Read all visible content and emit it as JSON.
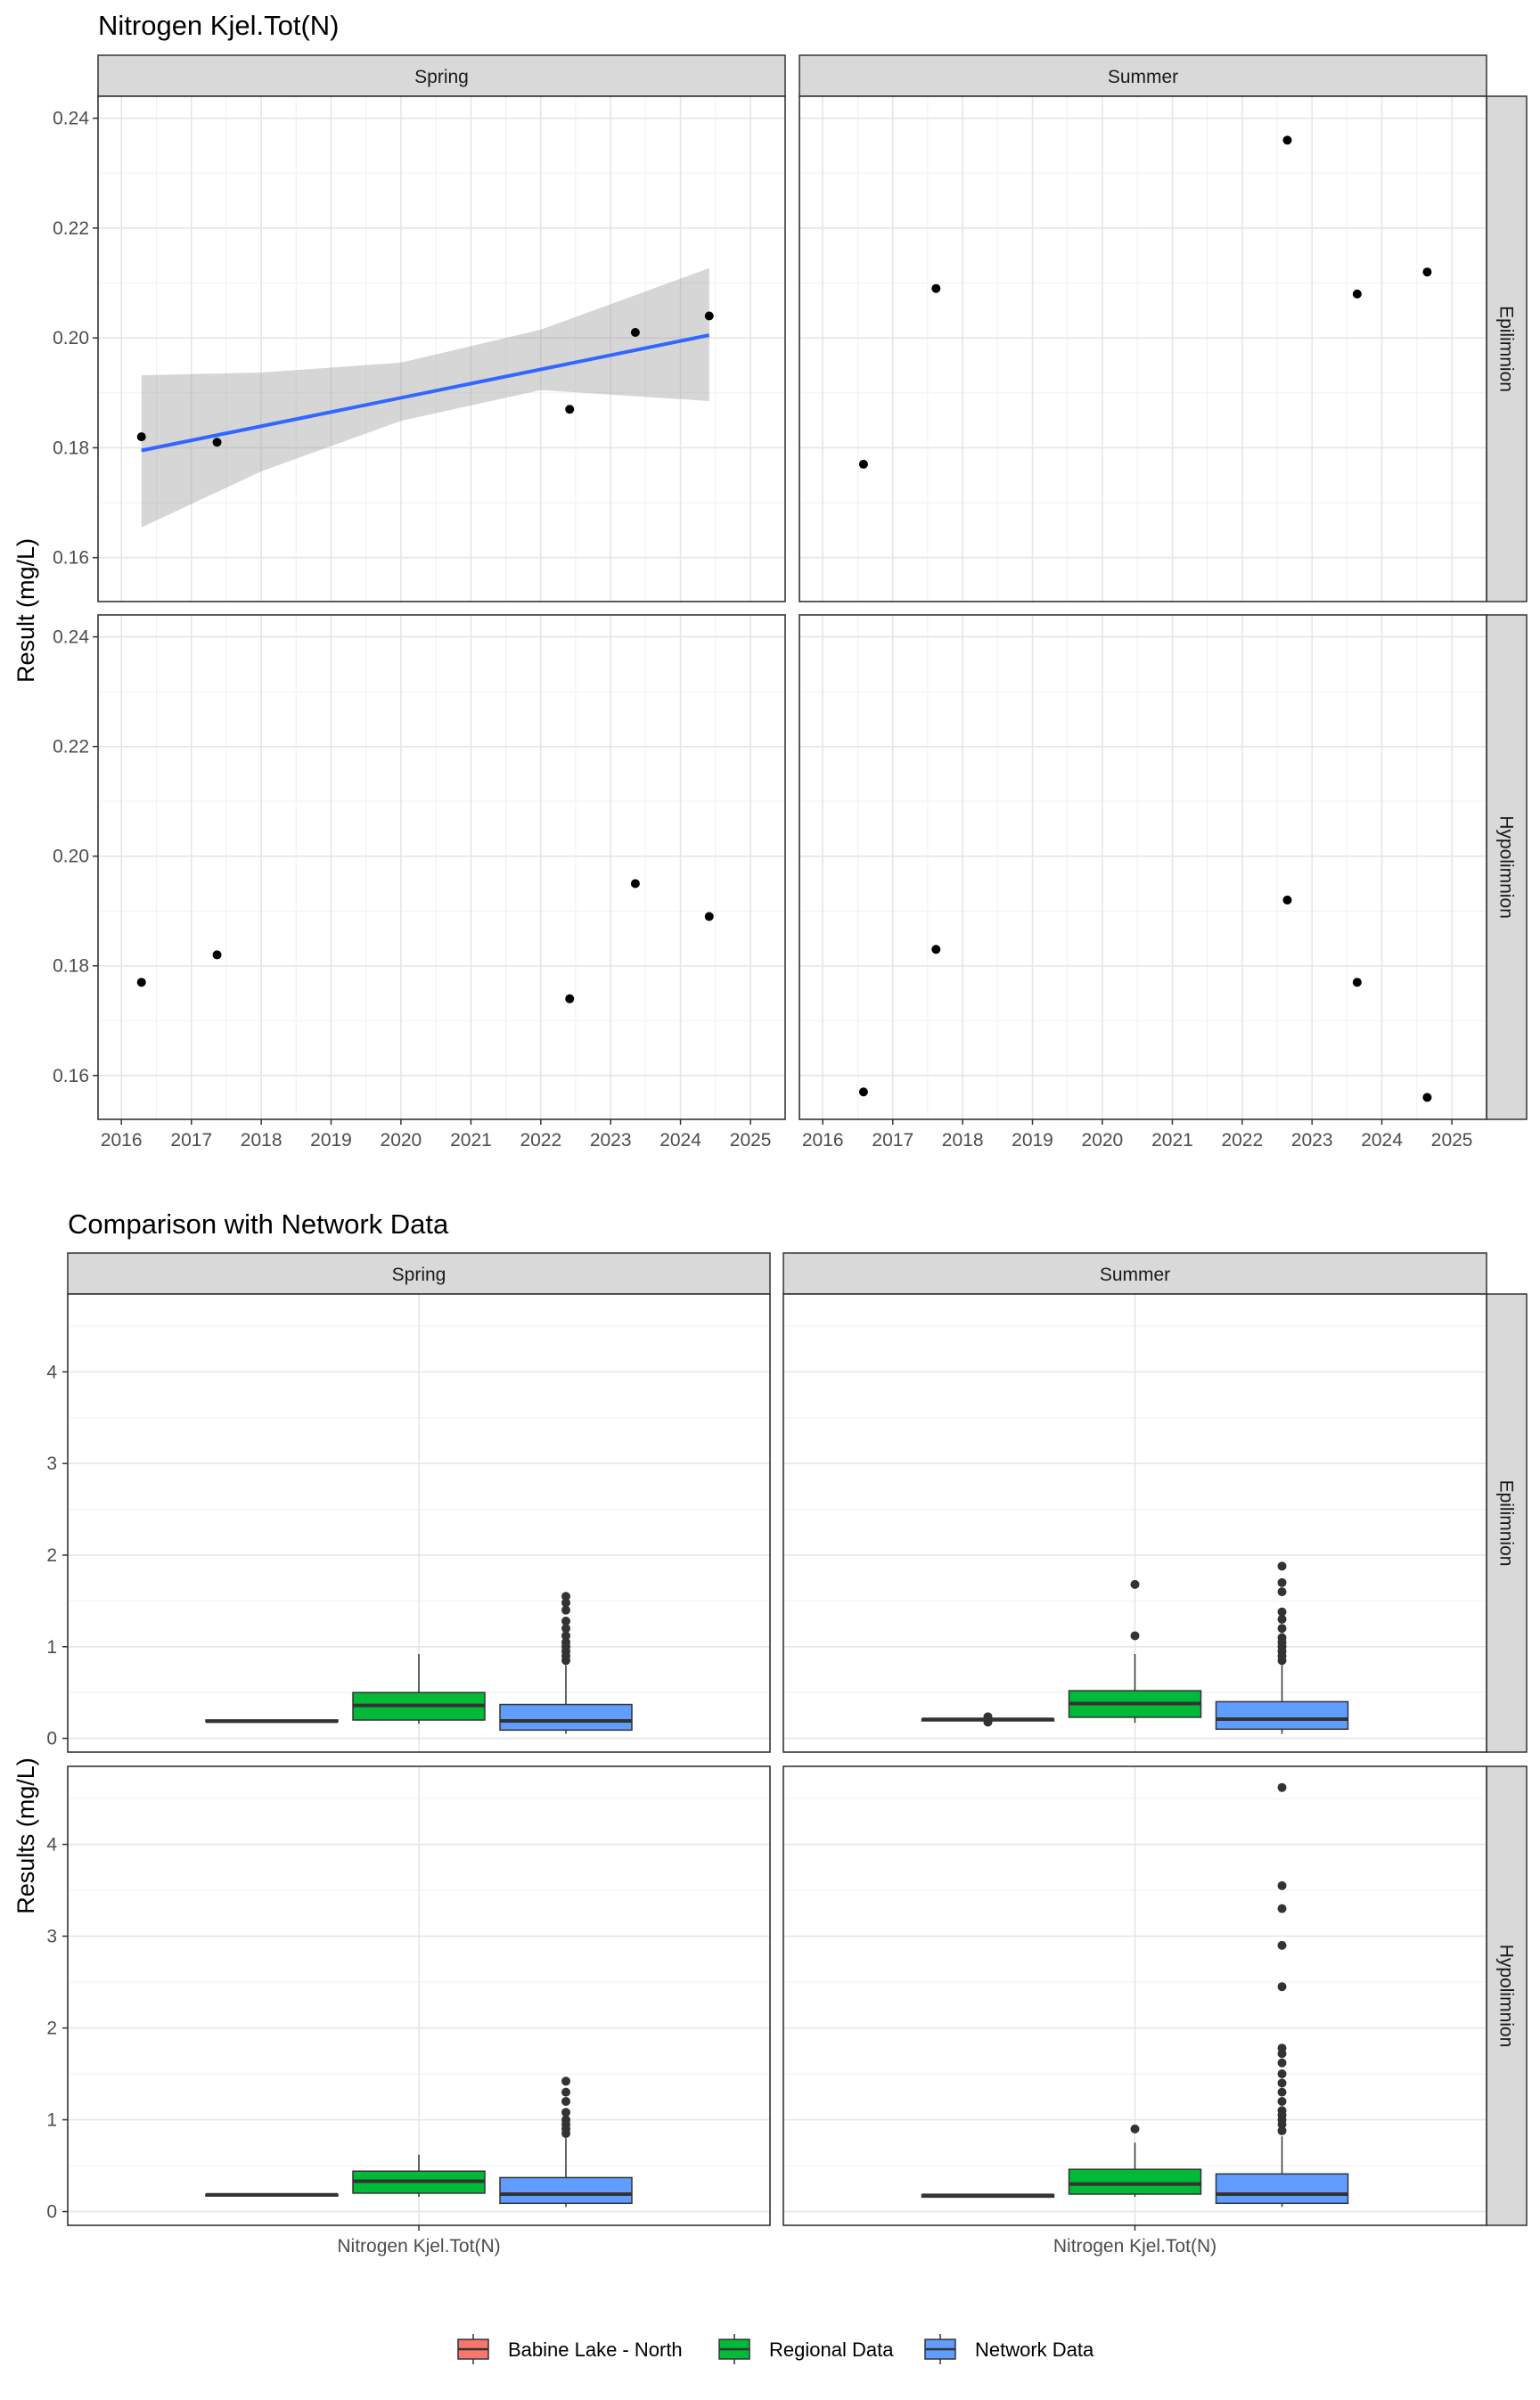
{
  "chart_data": [
    {
      "type": "scatter",
      "title": "Nitrogen Kjel.Tot(N)",
      "ylabel": "Result (mg/L)",
      "xlabel": "",
      "xlim": [
        "2015-09-01",
        "2025-07-01"
      ],
      "ylim": [
        0.152,
        0.244
      ],
      "x_ticks": [
        "2016",
        "2017",
        "2018",
        "2019",
        "2020",
        "2021",
        "2022",
        "2023",
        "2024",
        "2025"
      ],
      "y_ticks": [
        "0.16",
        "0.18",
        "0.20",
        "0.22",
        "0.24"
      ],
      "grid": true,
      "facet_cols": [
        "Spring",
        "Summer"
      ],
      "facet_rows": [
        "Epilimnion",
        "Hypolimnion"
      ],
      "panels": [
        {
          "col": "Spring",
          "row": "Epilimnion",
          "points": [
            {
              "x": "2016-04-15",
              "y": 0.182
            },
            {
              "x": "2017-05-15",
              "y": 0.181
            },
            {
              "x": "2022-06-01",
              "y": 0.187
            },
            {
              "x": "2023-05-10",
              "y": 0.201
            },
            {
              "x": "2024-05-30",
              "y": 0.204
            }
          ],
          "trend": {
            "start": {
              "x": "2016-04-15",
              "y": 0.1795
            },
            "end": {
              "x": "2024-05-30",
              "y": 0.2005
            },
            "ci_lower": [
              {
                "x": "2016-04-15",
                "y": 0.1655
              },
              {
                "x": "2018-01-01",
                "y": 0.1757
              },
              {
                "x": "2020-01-01",
                "y": 0.1849
              },
              {
                "x": "2022-01-01",
                "y": 0.1905
              },
              {
                "x": "2024-05-30",
                "y": 0.1885
              }
            ],
            "ci_upper": [
              {
                "x": "2016-04-15",
                "y": 0.1932
              },
              {
                "x": "2018-01-01",
                "y": 0.1937
              },
              {
                "x": "2020-01-01",
                "y": 0.1955
              },
              {
                "x": "2022-01-01",
                "y": 0.2015
              },
              {
                "x": "2024-05-30",
                "y": 0.2127
              }
            ]
          }
        },
        {
          "col": "Summer",
          "row": "Epilimnion",
          "points": [
            {
              "x": "2016-08-01",
              "y": 0.177
            },
            {
              "x": "2017-08-15",
              "y": 0.209
            },
            {
              "x": "2022-08-25",
              "y": 0.236
            },
            {
              "x": "2023-08-25",
              "y": 0.208
            },
            {
              "x": "2024-08-25",
              "y": 0.212
            }
          ]
        },
        {
          "col": "Spring",
          "row": "Hypolimnion",
          "points": [
            {
              "x": "2016-04-15",
              "y": 0.177
            },
            {
              "x": "2017-05-15",
              "y": 0.182
            },
            {
              "x": "2022-06-01",
              "y": 0.174
            },
            {
              "x": "2023-05-10",
              "y": 0.195
            },
            {
              "x": "2024-05-30",
              "y": 0.189
            }
          ]
        },
        {
          "col": "Summer",
          "row": "Hypolimnion",
          "points": [
            {
              "x": "2016-08-01",
              "y": 0.157
            },
            {
              "x": "2017-08-15",
              "y": 0.183
            },
            {
              "x": "2022-08-25",
              "y": 0.192
            },
            {
              "x": "2023-08-25",
              "y": 0.177
            },
            {
              "x": "2024-08-25",
              "y": 0.156
            }
          ]
        }
      ]
    },
    {
      "type": "box",
      "title": "Comparison with Network Data",
      "ylabel": "Results (mg/L)",
      "category": "Nitrogen Kjel.Tot(N)",
      "ylim": [
        -0.15,
        4.85
      ],
      "y_ticks": [
        "0",
        "1",
        "2",
        "3",
        "4"
      ],
      "grid": true,
      "legend_position": "bottom",
      "facet_cols": [
        "Spring",
        "Summer"
      ],
      "facet_rows": [
        "Epilimnion",
        "Hypolimnion"
      ],
      "series": [
        {
          "name": "Babine Lake - North",
          "color": "#F8766D"
        },
        {
          "name": "Regional Data",
          "color": "#00BA38"
        },
        {
          "name": "Network Data",
          "color": "#619CFF"
        }
      ],
      "panels": [
        {
          "col": "Spring",
          "row": "Epilimnion",
          "boxes": [
            {
              "series": "Babine Lake - North",
              "min": 0.181,
              "q1": 0.182,
              "median": 0.187,
              "q3": 0.201,
              "max": 0.204,
              "outliers": []
            },
            {
              "series": "Regional Data",
              "min": 0.16,
              "q1": 0.2,
              "median": 0.36,
              "q3": 0.5,
              "max": 0.92,
              "outliers": []
            },
            {
              "series": "Network Data",
              "min": 0.05,
              "q1": 0.09,
              "median": 0.19,
              "q3": 0.37,
              "max": 0.8,
              "outliers": [
                0.85,
                0.9,
                0.95,
                1.0,
                1.05,
                1.12,
                1.2,
                1.28,
                1.4,
                1.48,
                1.55
              ]
            }
          ]
        },
        {
          "col": "Summer",
          "row": "Epilimnion",
          "boxes": [
            {
              "series": "Babine Lake - North",
              "min": 0.177,
              "q1": 0.2,
              "median": 0.208,
              "q3": 0.21,
              "max": 0.212,
              "outliers": [
                0.177,
                0.236
              ]
            },
            {
              "series": "Regional Data",
              "min": 0.17,
              "q1": 0.23,
              "median": 0.38,
              "q3": 0.52,
              "max": 0.92,
              "outliers": [
                1.12,
                1.68
              ]
            },
            {
              "series": "Network Data",
              "min": 0.05,
              "q1": 0.1,
              "median": 0.21,
              "q3": 0.4,
              "max": 0.8,
              "outliers": [
                0.85,
                0.9,
                0.95,
                1.0,
                1.05,
                1.1,
                1.2,
                1.3,
                1.38,
                1.6,
                1.7,
                1.88
              ]
            }
          ]
        },
        {
          "col": "Spring",
          "row": "Hypolimnion",
          "boxes": [
            {
              "series": "Babine Lake - North",
              "min": 0.174,
              "q1": 0.177,
              "median": 0.182,
              "q3": 0.189,
              "max": 0.195,
              "outliers": []
            },
            {
              "series": "Regional Data",
              "min": 0.16,
              "q1": 0.2,
              "median": 0.33,
              "q3": 0.44,
              "max": 0.62,
              "outliers": []
            },
            {
              "series": "Network Data",
              "min": 0.05,
              "q1": 0.09,
              "median": 0.19,
              "q3": 0.37,
              "max": 0.8,
              "outliers": [
                0.85,
                0.9,
                0.95,
                1.0,
                1.08,
                1.2,
                1.3,
                1.42
              ]
            }
          ]
        },
        {
          "col": "Summer",
          "row": "Hypolimnion",
          "boxes": [
            {
              "series": "Babine Lake - North",
              "min": 0.156,
              "q1": 0.157,
              "median": 0.177,
              "q3": 0.183,
              "max": 0.192,
              "outliers": []
            },
            {
              "series": "Regional Data",
              "min": 0.16,
              "q1": 0.19,
              "median": 0.3,
              "q3": 0.46,
              "max": 0.75,
              "outliers": [
                0.9
              ]
            },
            {
              "series": "Network Data",
              "min": 0.05,
              "q1": 0.09,
              "median": 0.19,
              "q3": 0.41,
              "max": 0.82,
              "outliers": [
                0.88,
                0.95,
                1.0,
                1.05,
                1.1,
                1.2,
                1.3,
                1.4,
                1.5,
                1.62,
                1.72,
                1.78,
                2.45,
                2.9,
                3.3,
                3.55,
                4.62
              ]
            }
          ]
        }
      ]
    }
  ]
}
